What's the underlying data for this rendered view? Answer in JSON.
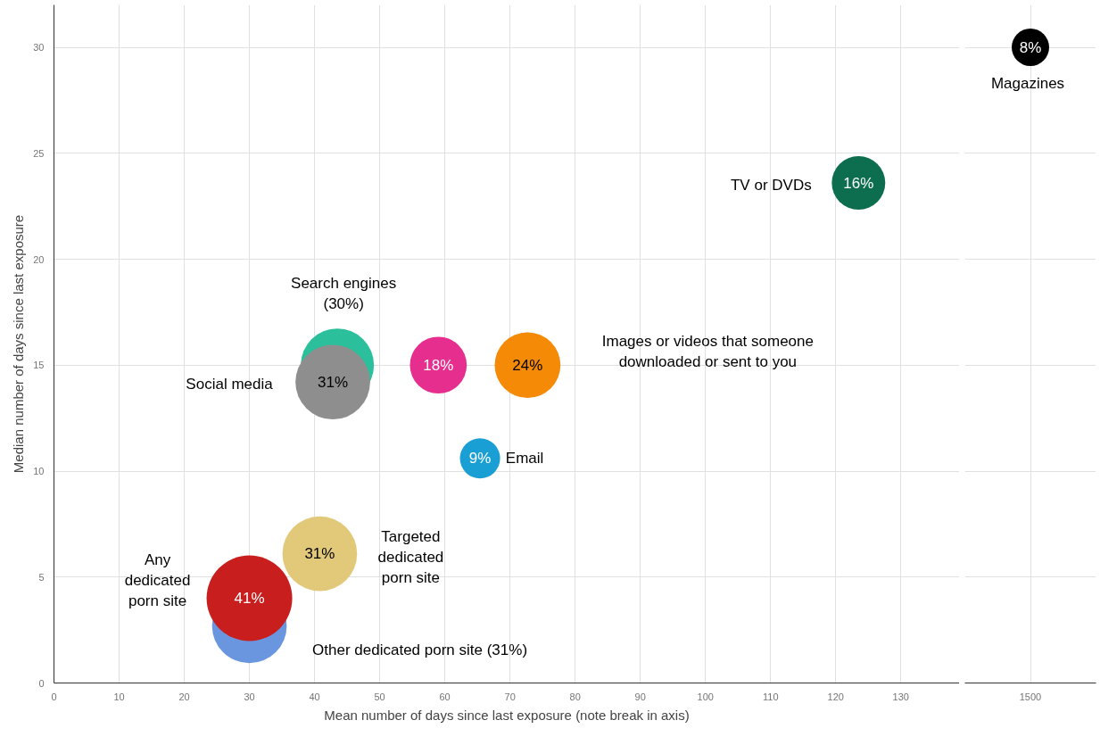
{
  "chart_data": [
    {
      "type": "bubble",
      "xlabel": "Mean number of days since last exposure (note break in axis)",
      "ylabel": "Median number of days since last exposure",
      "xlim": [
        0,
        139
      ],
      "xticks": [
        0,
        10,
        20,
        30,
        40,
        50,
        60,
        70,
        80,
        90,
        100,
        110,
        120,
        130
      ],
      "ylim": [
        0,
        32
      ],
      "yticks": [
        0,
        5,
        10,
        15,
        20,
        25,
        30
      ],
      "grid": true,
      "series": [
        {
          "name": "Search engines\n(30%)",
          "color": "#2bbf9c",
          "x": [
            43.5
          ],
          "values": [
            15.0
          ],
          "sizes": [
            0.73
          ]
        },
        {
          "name": "Social media",
          "color": "#8e8e8e",
          "x": [
            42.8
          ],
          "values": [
            14.2
          ],
          "sizes": [
            0.76
          ]
        },
        {
          "color": "#e62e8f",
          "x": [
            59
          ],
          "values": [
            15.0
          ],
          "sizes": [
            0.44
          ]
        },
        {
          "name": "Images or videos that someone\ndownloaded or sent to you",
          "color": "#f58a07",
          "x": [
            72.7
          ],
          "values": [
            15.0
          ],
          "sizes": [
            0.59
          ]
        },
        {
          "name": "Email",
          "color": "#1a9fd4",
          "x": [
            65.4
          ],
          "values": [
            10.6
          ],
          "sizes": [
            0.22
          ]
        },
        {
          "name": "Targeted\ndedicated\nporn site",
          "color": "#e2c97a",
          "x": [
            40.8
          ],
          "values": [
            6.1
          ],
          "sizes": [
            0.76
          ]
        },
        {
          "name": "Other dedicated porn site (31%)",
          "color": "#6a96e0",
          "x": [
            30
          ],
          "values": [
            2.7
          ],
          "sizes": [
            0.76
          ]
        },
        {
          "name": "Any\ndedicated\nporn site",
          "color": "#c91e1e",
          "x": [
            30
          ],
          "values": [
            4.0
          ],
          "sizes": [
            1
          ]
        },
        {
          "name": "TV or DVDs",
          "color": "#0d6e4f",
          "x": [
            123.5
          ],
          "values": [
            23.6
          ],
          "sizes": [
            0.39
          ]
        }
      ],
      "annotations": [
        {
          "text": "31%",
          "x": 42.8,
          "y": 14.2
        },
        {
          "text": "18%",
          "x": 59,
          "y": 15.0
        },
        {
          "text": "24%",
          "x": 72.7,
          "y": 15.0
        },
        {
          "text": "9%",
          "x": 65.4,
          "y": 10.6
        },
        {
          "text": "31%",
          "x": 40.8,
          "y": 6.1
        },
        {
          "text": "41%",
          "x": 30,
          "y": 4.0
        },
        {
          "text": "16%",
          "x": 123.5,
          "y": 23.6
        }
      ]
    },
    {
      "type": "bubble",
      "categories": [
        "1500"
      ],
      "ylim": [
        0,
        32
      ],
      "yticks": [
        0,
        5,
        10,
        15,
        20,
        25,
        30
      ],
      "grid": true,
      "tick_labels": "x",
      "series": [
        {
          "name": "Magazines",
          "color": "#000000",
          "values": [
            30
          ],
          "sizes": [
            1
          ]
        }
      ],
      "annotations": [
        {
          "text": "8%",
          "x": "1500",
          "y": 30
        }
      ]
    }
  ]
}
